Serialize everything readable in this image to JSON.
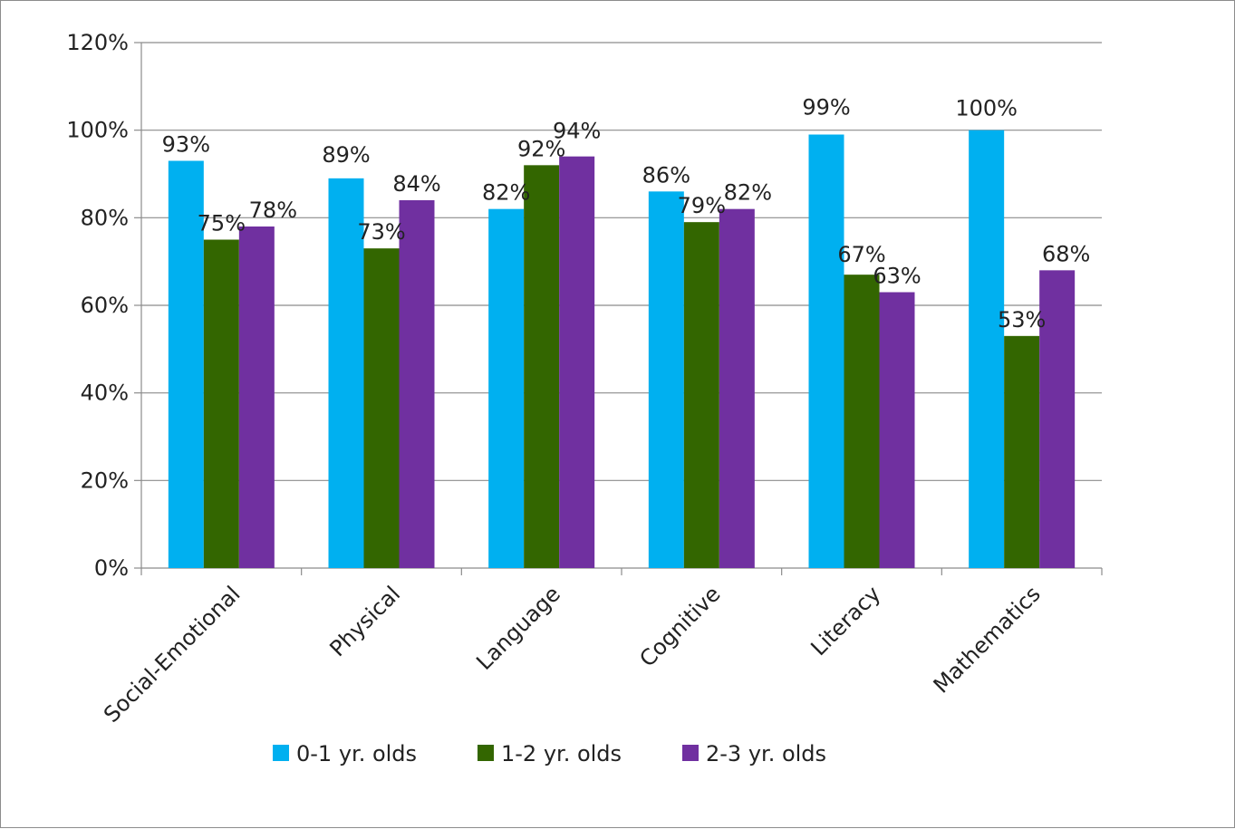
{
  "chart_data": {
    "type": "bar",
    "categories": [
      "Social-Emotional",
      "Physical",
      "Language",
      "Cognitive",
      "Literacy",
      "Mathematics"
    ],
    "series": [
      {
        "name": "0-1 yr. olds",
        "color": "#00b0f0",
        "values": [
          93,
          89,
          82,
          86,
          99,
          100
        ],
        "labels": [
          "93%",
          "89%",
          "82%",
          "86%",
          "99%",
          "100%"
        ]
      },
      {
        "name": "1-2 yr. olds",
        "color": "#336600",
        "values": [
          75,
          73,
          92,
          79,
          67,
          53
        ],
        "labels": [
          "75%",
          "73%",
          "92%",
          "79%",
          "67%",
          "53%"
        ]
      },
      {
        "name": "2-3 yr. olds",
        "color": "#7030a0",
        "values": [
          78,
          84,
          94,
          82,
          63,
          68
        ],
        "labels": [
          "78%",
          "84%",
          "94%",
          "82%",
          "63%",
          "68%"
        ]
      }
    ],
    "yticks": [
      "0%",
      "20%",
      "40%",
      "60%",
      "80%",
      "100%",
      "120%"
    ],
    "ylim": [
      0,
      120
    ],
    "grid": true,
    "legend": "bottom",
    "title": "",
    "xlabel": "",
    "ylabel": ""
  }
}
